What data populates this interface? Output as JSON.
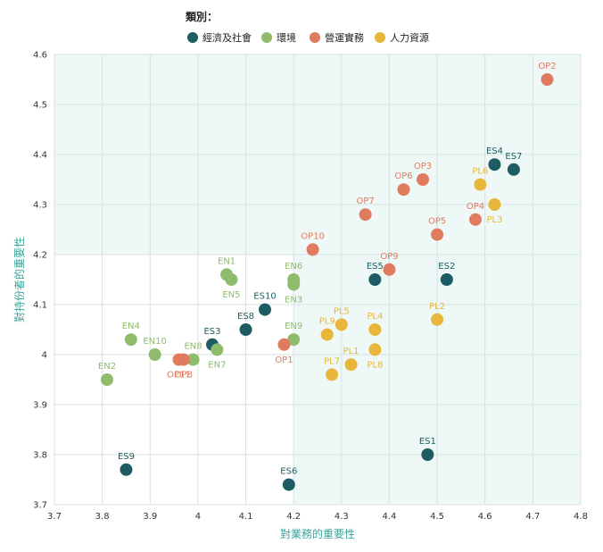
{
  "chart_data": {
    "type": "scatter",
    "title": "",
    "xlabel": "對業務的重要性",
    "ylabel": "對持份者的重要性",
    "xlim": [
      3.7,
      4.8
    ],
    "ylim": [
      3.7,
      4.6
    ],
    "x_ticks": [
      "3.7",
      "3.8",
      "3.9",
      "4",
      "4.1",
      "4.2",
      "4.3",
      "4.4",
      "4.5",
      "4.6",
      "4.7",
      "4.8"
    ],
    "y_ticks": [
      "3.7",
      "3.8",
      "3.9",
      "4",
      "4.1",
      "4.2",
      "4.3",
      "4.4",
      "4.5",
      "4.6"
    ],
    "grid": true,
    "legend": {
      "title": "類別：",
      "position": "top-center",
      "items": [
        {
          "label": "經濟及社會",
          "color": "#1d5c63"
        },
        {
          "label": "環境",
          "color": "#8fbc6b"
        },
        {
          "label": "營運實務",
          "color": "#e07b5f"
        },
        {
          "label": "人力資源",
          "color": "#e8b63a"
        }
      ]
    },
    "highlight_regions": [
      {
        "x": [
          3.7,
          4.8
        ],
        "y": [
          4.2,
          4.6
        ]
      },
      {
        "x": [
          4.2,
          4.8
        ],
        "y": [
          3.7,
          4.2
        ]
      }
    ],
    "series": [
      {
        "name": "經濟及社會",
        "color": "#1d5c63",
        "points": [
          {
            "label": "ES1",
            "x": 4.48,
            "y": 3.8,
            "label_pos": "above"
          },
          {
            "label": "ES2",
            "x": 4.52,
            "y": 4.15,
            "label_pos": "above"
          },
          {
            "label": "ES3",
            "x": 4.03,
            "y": 4.02,
            "label_pos": "above"
          },
          {
            "label": "ES4",
            "x": 4.62,
            "y": 4.38,
            "label_pos": "above"
          },
          {
            "label": "ES5",
            "x": 4.37,
            "y": 4.15,
            "label_pos": "above"
          },
          {
            "label": "ES6",
            "x": 4.19,
            "y": 3.74,
            "label_pos": "above"
          },
          {
            "label": "ES7",
            "x": 4.66,
            "y": 4.37,
            "label_pos": "above"
          },
          {
            "label": "ES8",
            "x": 4.1,
            "y": 4.05,
            "label_pos": "above"
          },
          {
            "label": "ES9",
            "x": 3.85,
            "y": 3.77,
            "label_pos": "above"
          },
          {
            "label": "ES10",
            "x": 4.14,
            "y": 4.09,
            "label_pos": "above"
          }
        ]
      },
      {
        "name": "環境",
        "color": "#8fbc6b",
        "points": [
          {
            "label": "EN1",
            "x": 4.06,
            "y": 4.16,
            "label_pos": "above"
          },
          {
            "label": "EN2",
            "x": 3.81,
            "y": 3.95,
            "label_pos": "above"
          },
          {
            "label": "EN3",
            "x": 4.2,
            "y": 4.14,
            "label_pos": "below"
          },
          {
            "label": "EN4",
            "x": 3.86,
            "y": 4.03,
            "label_pos": "above"
          },
          {
            "label": "EN5",
            "x": 4.07,
            "y": 4.15,
            "label_pos": "below"
          },
          {
            "label": "EN6",
            "x": 4.2,
            "y": 4.15,
            "label_pos": "above"
          },
          {
            "label": "EN7",
            "x": 4.04,
            "y": 4.01,
            "label_pos": "below"
          },
          {
            "label": "EN8",
            "x": 3.99,
            "y": 3.99,
            "label_pos": "above"
          },
          {
            "label": "EN9",
            "x": 4.2,
            "y": 4.03,
            "label_pos": "above"
          },
          {
            "label": "EN10",
            "x": 3.91,
            "y": 4.0,
            "label_pos": "above"
          }
        ]
      },
      {
        "name": "營運實務",
        "color": "#e07b5f",
        "points": [
          {
            "label": "OP1",
            "x": 4.18,
            "y": 4.02,
            "label_pos": "below"
          },
          {
            "label": "OP2",
            "x": 4.73,
            "y": 4.55,
            "label_pos": "above"
          },
          {
            "label": "OP3",
            "x": 4.47,
            "y": 4.35,
            "label_pos": "above"
          },
          {
            "label": "OP4",
            "x": 4.58,
            "y": 4.27,
            "label_pos": "above"
          },
          {
            "label": "OP5",
            "x": 4.5,
            "y": 4.24,
            "label_pos": "above"
          },
          {
            "label": "OP6",
            "x": 4.43,
            "y": 4.33,
            "label_pos": "above"
          },
          {
            "label": "OP7",
            "x": 4.35,
            "y": 4.28,
            "label_pos": "above"
          },
          {
            "label": "OP8",
            "x": 3.97,
            "y": 3.99,
            "label_pos": "below"
          },
          {
            "label": "OP9",
            "x": 4.4,
            "y": 4.17,
            "label_pos": "above"
          },
          {
            "label": "OP10",
            "x": 4.24,
            "y": 4.21,
            "label_pos": "above"
          },
          {
            "label": "OP11",
            "x": 3.96,
            "y": 3.99,
            "label_pos": "below"
          }
        ]
      },
      {
        "name": "人力資源",
        "color": "#e8b63a",
        "points": [
          {
            "label": "PL1",
            "x": 4.32,
            "y": 3.98,
            "label_pos": "above"
          },
          {
            "label": "PL2",
            "x": 4.5,
            "y": 4.07,
            "label_pos": "above"
          },
          {
            "label": "PL3",
            "x": 4.62,
            "y": 4.3,
            "label_pos": "below"
          },
          {
            "label": "PL4",
            "x": 4.37,
            "y": 4.05,
            "label_pos": "above"
          },
          {
            "label": "PL5",
            "x": 4.3,
            "y": 4.06,
            "label_pos": "above"
          },
          {
            "label": "PL6",
            "x": 4.59,
            "y": 4.34,
            "label_pos": "above"
          },
          {
            "label": "PL7",
            "x": 4.28,
            "y": 3.96,
            "label_pos": "above"
          },
          {
            "label": "PL8",
            "x": 4.37,
            "y": 4.01,
            "label_pos": "below"
          },
          {
            "label": "PL9",
            "x": 4.27,
            "y": 4.04,
            "label_pos": "above"
          }
        ]
      }
    ]
  }
}
